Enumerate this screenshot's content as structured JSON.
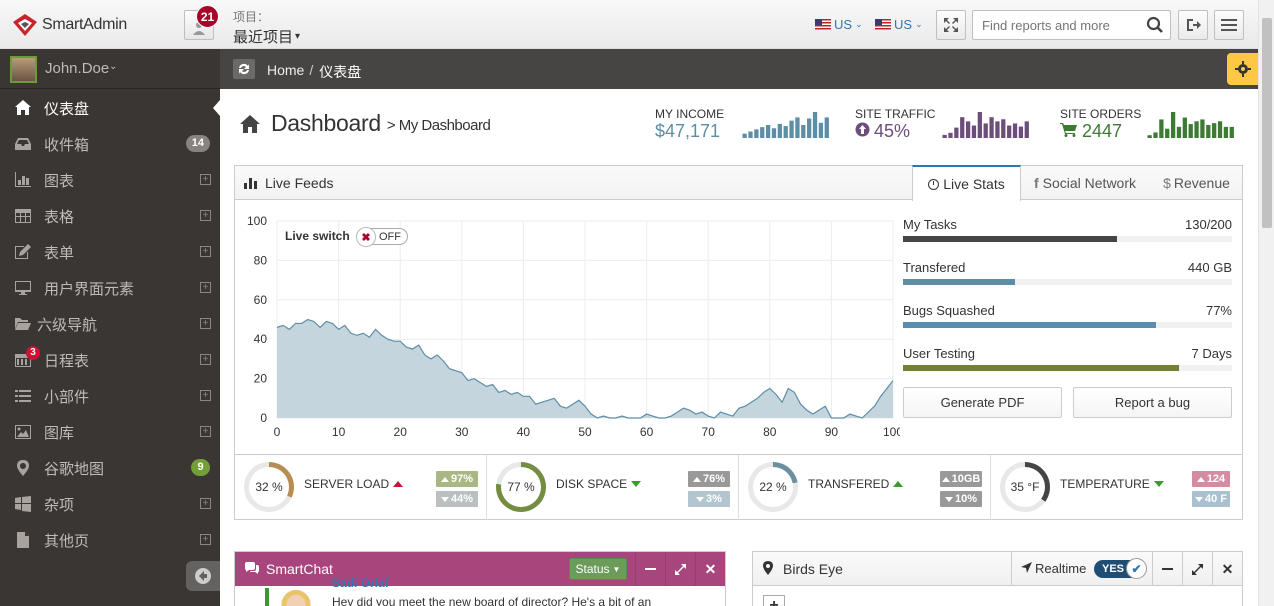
{
  "header": {
    "logo_text": "SmartAdmin",
    "notif_count": "21",
    "project_label": "项目：",
    "project_value": "最近项目",
    "lang1": "US",
    "lang2": "US",
    "search_placeholder": "Find reports and more"
  },
  "user": {
    "name": "John.Doe"
  },
  "sidebar": {
    "items": [
      {
        "label": "仪表盘",
        "icon": "home-icon",
        "active": true
      },
      {
        "label": "收件箱",
        "icon": "inbox-icon",
        "badge": "14"
      },
      {
        "label": "图表",
        "icon": "bar-chart-icon",
        "expand": true
      },
      {
        "label": "表格",
        "icon": "table-icon",
        "expand": true
      },
      {
        "label": "表单",
        "icon": "pencil-square-icon",
        "expand": true
      },
      {
        "label": "用户界面元素",
        "icon": "desktop-icon",
        "expand": true
      },
      {
        "label": "六级导航",
        "icon": "folder-open-icon",
        "expand": true
      },
      {
        "label": "日程表",
        "icon": "calendar-icon",
        "badge": "3",
        "expand": true
      },
      {
        "label": "小部件",
        "icon": "list-icon",
        "expand": true
      },
      {
        "label": "图库",
        "icon": "picture-icon",
        "expand": true
      },
      {
        "label": "谷歌地图",
        "icon": "map-marker-icon",
        "badge": "9"
      },
      {
        "label": "杂项",
        "icon": "windows-icon",
        "expand": true
      },
      {
        "label": "其他页",
        "icon": "file-icon",
        "expand": true
      }
    ]
  },
  "breadcrumb": {
    "home": "Home",
    "sep": "/",
    "current": "仪表盘"
  },
  "page": {
    "title": "Dashboard",
    "subtitle": "> My Dashboard"
  },
  "stats": [
    {
      "label": "MY INCOME",
      "value": "$47,171",
      "color": "#5d8ea6",
      "spark": [
        4,
        6,
        8,
        10,
        12,
        9,
        13,
        11,
        16,
        19,
        12,
        18,
        24,
        14,
        19
      ]
    },
    {
      "label": "SITE TRAFFIC",
      "value": "45%",
      "color": "#6d4d7a",
      "spark": [
        3,
        5,
        10,
        20,
        16,
        12,
        25,
        14,
        20,
        16,
        18,
        12,
        14,
        11,
        16
      ]
    },
    {
      "label": "SITE ORDERS",
      "value": "2447",
      "color": "#3d7a33",
      "spark": [
        3,
        6,
        20,
        10,
        28,
        12,
        22,
        15,
        18,
        20,
        14,
        16,
        18,
        12,
        12
      ]
    }
  ],
  "feeds": {
    "title": "Live Feeds",
    "tabs": [
      "Live Stats",
      "Social Network",
      "Revenue"
    ],
    "switch_label": "Live switch",
    "switch_state": "OFF"
  },
  "chart_data": {
    "type": "area",
    "x": [
      0,
      1,
      2,
      3,
      4,
      5,
      6,
      7,
      8,
      9,
      10,
      11,
      12,
      13,
      14,
      15,
      16,
      17,
      18,
      19,
      20,
      21,
      22,
      23,
      24,
      25,
      26,
      27,
      28,
      29,
      30,
      31,
      32,
      33,
      34,
      35,
      36,
      37,
      38,
      39,
      40,
      41,
      42,
      43,
      44,
      45,
      46,
      47,
      48,
      49,
      50,
      51,
      52,
      53,
      54,
      55,
      56,
      57,
      58,
      59,
      60,
      61,
      62,
      63,
      64,
      65,
      66,
      67,
      68,
      69,
      70,
      71,
      72,
      73,
      74,
      75,
      76,
      77,
      78,
      79,
      80,
      81,
      82,
      83,
      84,
      85,
      86,
      87,
      88,
      89,
      90,
      91,
      92,
      93,
      94,
      95,
      96,
      97,
      98,
      99,
      100
    ],
    "values": [
      46,
      47,
      45,
      48,
      48,
      50,
      49,
      46,
      49,
      48,
      45,
      47,
      43,
      42,
      43,
      41,
      45,
      42,
      40,
      39,
      39,
      36,
      35,
      37,
      32,
      30,
      32,
      29,
      25,
      24,
      23,
      19,
      20,
      18,
      16,
      17,
      13,
      14,
      12,
      13,
      11,
      11,
      7,
      8,
      9,
      10,
      6,
      5,
      7,
      9,
      6,
      2,
      0,
      1,
      0,
      0,
      1,
      0,
      0,
      0,
      2,
      1,
      0,
      0,
      1,
      3,
      5,
      4,
      2,
      3,
      1,
      0,
      3,
      2,
      1,
      5,
      6,
      8,
      10,
      13,
      15,
      12,
      8,
      15,
      13,
      7,
      4,
      2,
      4,
      6,
      0,
      0,
      0,
      2,
      1,
      0,
      3,
      6,
      11,
      15,
      19
    ],
    "xlim": [
      0,
      100
    ],
    "ylim": [
      0,
      100
    ],
    "xticks": [
      "0",
      "10",
      "20",
      "30",
      "40",
      "50",
      "60",
      "70",
      "80",
      "90",
      "100"
    ],
    "yticks": [
      "100",
      "80",
      "60",
      "40",
      "20",
      "0"
    ],
    "grid": true,
    "fill_color": "#c4d5de",
    "line_color": "#5d8ea6"
  },
  "live_stats": [
    {
      "label": "My Tasks",
      "value": "130/200",
      "pct": 65,
      "color": "#474544"
    },
    {
      "label": "Transfered",
      "value": "440 GB",
      "pct": 34,
      "color": "#5d8ea6"
    },
    {
      "label": "Bugs Squashed",
      "value": "77%",
      "pct": 77,
      "color": "#5a8cad"
    },
    {
      "label": "User Testing",
      "value": "7 Days",
      "pct": 84,
      "color": "#728136"
    }
  ],
  "buttons": {
    "pdf": "Generate PDF",
    "bug": "Report a bug"
  },
  "kpis": [
    {
      "pct": "32 %",
      "label": "SERVER LOAD",
      "dir": "up",
      "b1": "97%",
      "b2": "44%",
      "c1": "#a9b784",
      "c2": "#b9c0bf",
      "ring": 32,
      "ringcolor": "#b68d52"
    },
    {
      "pct": "77 %",
      "label": "DISK SPACE",
      "dir": "down",
      "b1": "76%",
      "b2": "3%",
      "c1": "#999",
      "c2": "#b3c6d0",
      "ring": 77,
      "ringcolor": "#758c43"
    },
    {
      "pct": "22 %",
      "label": "TRANSFERED",
      "dir": "up",
      "b1": "10GB",
      "b2": "10%",
      "c1": "#999",
      "c2": "#999",
      "ring": 22,
      "ringcolor": "#6d8ea0"
    },
    {
      "pct": "35 °F",
      "label": "TEMPERATURE",
      "dir": "down",
      "b1": "124",
      "b2": "40 F",
      "c1": "#d48da0",
      "c2": "#a8c0cf",
      "ring": 35,
      "ringcolor": "#474544"
    }
  ],
  "smartchat": {
    "title": "SmartChat",
    "status": "Status",
    "author": "Sadi Orlaf",
    "message": "Hey did you meet the new board of director? He's a bit of an"
  },
  "birdseye": {
    "title": "Birds Eye",
    "realtime": "Realtime",
    "toggle": "YES"
  }
}
